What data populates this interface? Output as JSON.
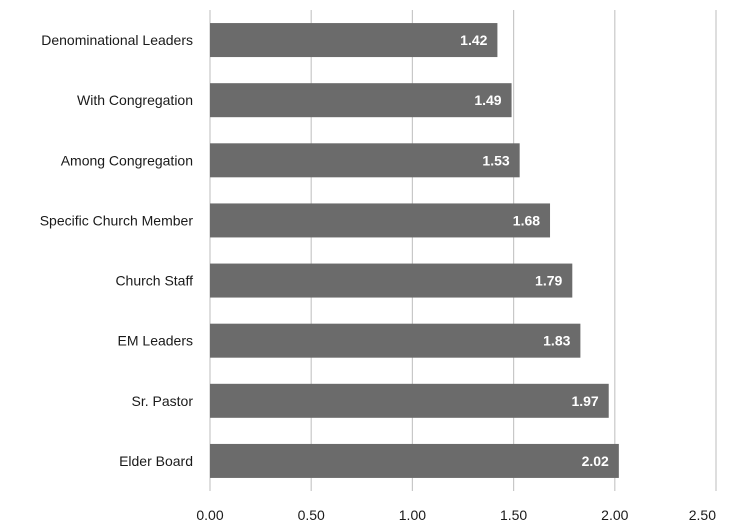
{
  "chart_data": {
    "type": "bar",
    "orientation": "horizontal",
    "categories": [
      "Denominational Leaders",
      "With Congregation",
      "Among Congregation",
      "Specific Church Member",
      "Church Staff",
      "EM Leaders",
      "Sr. Pastor",
      "Elder Board"
    ],
    "values": [
      1.42,
      1.49,
      1.53,
      1.68,
      1.79,
      1.83,
      1.97,
      2.02
    ],
    "data_labels": [
      "1.42",
      "1.49",
      "1.53",
      "1.68",
      "1.79",
      "1.83",
      "1.97",
      "2.02"
    ],
    "x_ticks": [
      "0.00",
      "0.50",
      "1.00",
      "1.50",
      "2.00",
      "2.50"
    ],
    "xlim": [
      0,
      2.5
    ],
    "title": "",
    "xlabel": "",
    "ylabel": "",
    "grid": "vertical",
    "legend": "none",
    "bar_color": "#6b6b6b",
    "grid_color": "#c8c8c8",
    "label_color": "#ffffff"
  }
}
